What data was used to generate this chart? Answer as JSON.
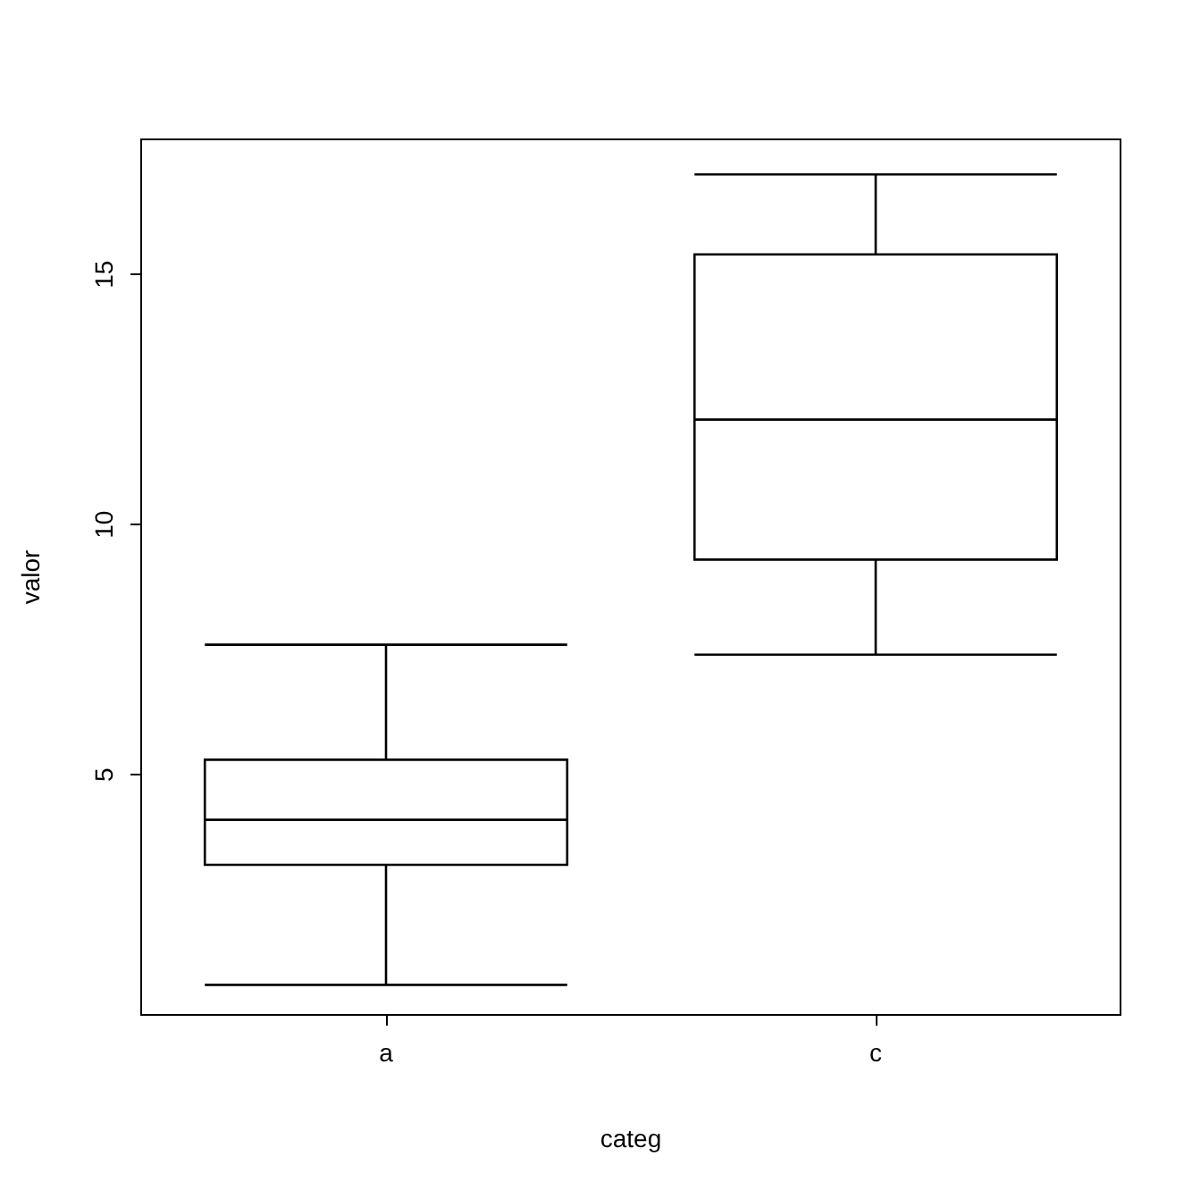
{
  "chart_data": {
    "type": "box",
    "xlabel": "categ",
    "ylabel": "valor",
    "categories": [
      "a",
      "c"
    ],
    "series": [
      {
        "color": "#000000",
        "boxes": [
          {
            "low": 0.8,
            "q1": 3.2,
            "median": 4.1,
            "q3": 5.3,
            "high": 7.6
          },
          {
            "low": 7.4,
            "q1": 9.3,
            "median": 12.1,
            "q3": 15.4,
            "high": 17.0
          }
        ]
      }
    ],
    "ylim": [
      0.2,
      17.7
    ],
    "yticks": [
      5,
      10,
      15
    ],
    "grid": false
  }
}
